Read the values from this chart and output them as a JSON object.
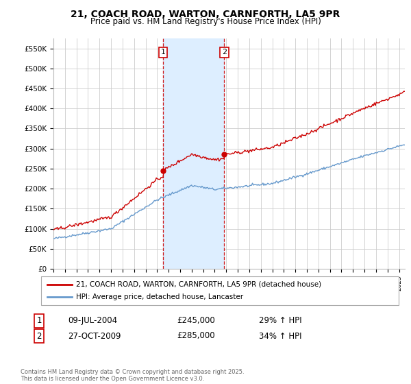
{
  "title": "21, COACH ROAD, WARTON, CARNFORTH, LA5 9PR",
  "subtitle": "Price paid vs. HM Land Registry's House Price Index (HPI)",
  "ylabel_ticks": [
    "£0",
    "£50K",
    "£100K",
    "£150K",
    "£200K",
    "£250K",
    "£300K",
    "£350K",
    "£400K",
    "£450K",
    "£500K",
    "£550K"
  ],
  "ytick_values": [
    0,
    50000,
    100000,
    150000,
    200000,
    250000,
    300000,
    350000,
    400000,
    450000,
    500000,
    550000
  ],
  "ylim": [
    0,
    575000
  ],
  "xlim_start": 1995.0,
  "xlim_end": 2025.5,
  "sale1": {
    "date": 2004.52,
    "price": 245000,
    "label": "1",
    "text": "09-JUL-2004",
    "pct": "29% ↑ HPI"
  },
  "sale2": {
    "date": 2009.82,
    "price": 285000,
    "label": "2",
    "text": "27-OCT-2009",
    "pct": "34% ↑ HPI"
  },
  "legend_line1": "21, COACH ROAD, WARTON, CARNFORTH, LA5 9PR (detached house)",
  "legend_line2": "HPI: Average price, detached house, Lancaster",
  "footer": "Contains HM Land Registry data © Crown copyright and database right 2025.\nThis data is licensed under the Open Government Licence v3.0.",
  "table": [
    {
      "num": "1",
      "date": "09-JUL-2004",
      "price": "£245,000",
      "pct": "29% ↑ HPI"
    },
    {
      "num": "2",
      "date": "27-OCT-2009",
      "price": "£285,000",
      "pct": "34% ↑ HPI"
    }
  ],
  "red_color": "#cc0000",
  "blue_color": "#6699cc",
  "shade_color": "#ddeeff",
  "vline_color": "#cc0000",
  "background_color": "#ffffff",
  "grid_color": "#cccccc"
}
